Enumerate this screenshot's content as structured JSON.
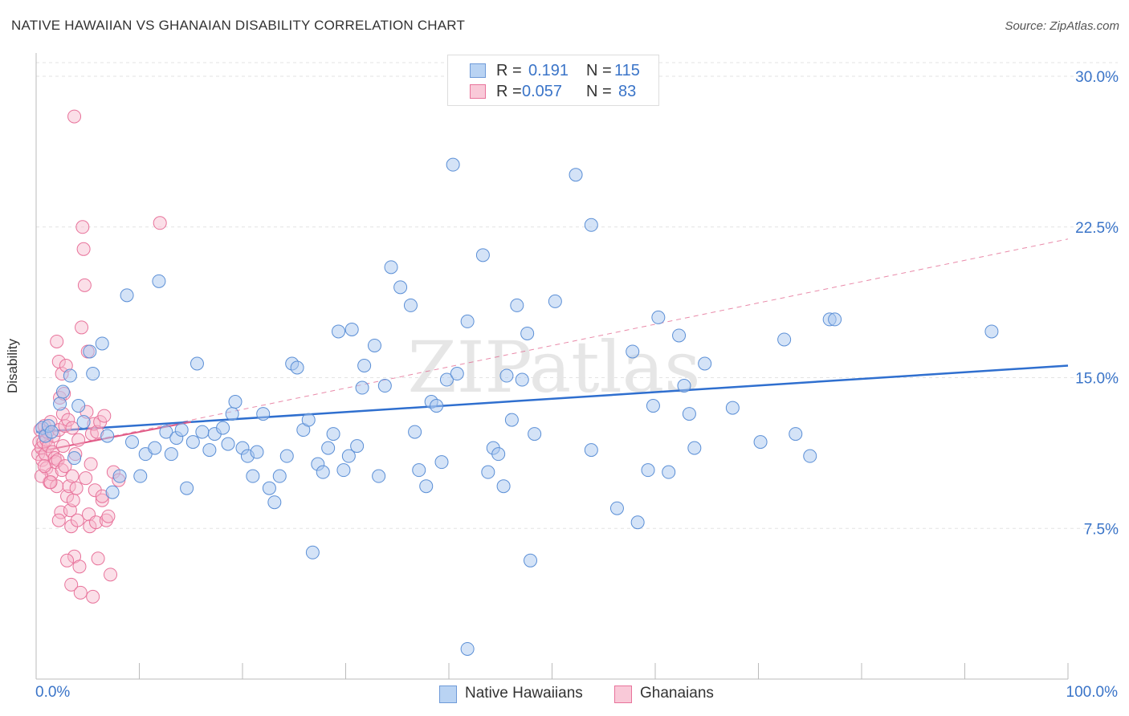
{
  "title": "NATIVE HAWAIIAN VS GHANAIAN DISABILITY CORRELATION CHART",
  "source": "Source: ZipAtlas.com",
  "watermark": "ZIPatlas",
  "colors": {
    "blue_fill": "#a9c8f0",
    "blue_stroke": "#5b8fd6",
    "blue_line": "#2f6fcf",
    "pink_fill": "#f7b8cc",
    "pink_stroke": "#e8739b",
    "pink_line": "#e05a86",
    "axis_text": "#3a74c8",
    "grid": "#e3e3e3"
  },
  "legend": {
    "rows": [
      {
        "r_label": "R =",
        "r_value": "0.191",
        "n_label": "N =",
        "n_value": "115"
      },
      {
        "r_label": "R =",
        "r_value": "0.057",
        "n_label": "N =",
        "n_value": "83"
      }
    ]
  },
  "bottom_legend": {
    "series_1": "Native Hawaiians",
    "series_2": "Ghanaians"
  },
  "chart_data": {
    "type": "scatter",
    "title": "NATIVE HAWAIIAN VS GHANAIAN DISABILITY CORRELATION CHART",
    "xlabel": "",
    "ylabel": "Disability",
    "xlim": [
      0,
      100
    ],
    "ylim": [
      0,
      31
    ],
    "x_tick_labels": [
      "0.0%",
      "100.0%"
    ],
    "y_ticks": [
      7.5,
      15.0,
      22.5,
      30.0
    ],
    "y_tick_labels": [
      "7.5%",
      "15.0%",
      "22.5%",
      "30.0%"
    ],
    "grid": true,
    "series": [
      {
        "name": "Native Hawaiians",
        "r": 0.191,
        "n": 115,
        "trend": {
          "x": [
            0,
            100
          ],
          "y": [
            12.3,
            15.6
          ],
          "style": "solid"
        },
        "points": [
          [
            0.6,
            12.5
          ],
          [
            0.9,
            12.1
          ],
          [
            1.2,
            12.6
          ],
          [
            1.5,
            12.3
          ],
          [
            2.3,
            13.7
          ],
          [
            2.6,
            14.3
          ],
          [
            3.3,
            15.1
          ],
          [
            3.7,
            11.0
          ],
          [
            4.1,
            13.6
          ],
          [
            4.6,
            12.8
          ],
          [
            5.2,
            16.3
          ],
          [
            5.5,
            15.2
          ],
          [
            6.4,
            16.7
          ],
          [
            6.9,
            12.1
          ],
          [
            7.4,
            9.3
          ],
          [
            8.1,
            10.1
          ],
          [
            8.8,
            19.1
          ],
          [
            9.3,
            11.8
          ],
          [
            10.1,
            10.1
          ],
          [
            10.6,
            11.2
          ],
          [
            11.5,
            11.5
          ],
          [
            11.9,
            19.8
          ],
          [
            12.6,
            12.3
          ],
          [
            13.1,
            11.2
          ],
          [
            13.6,
            12.0
          ],
          [
            14.1,
            12.4
          ],
          [
            14.6,
            9.5
          ],
          [
            15.2,
            11.8
          ],
          [
            15.6,
            15.7
          ],
          [
            16.1,
            12.3
          ],
          [
            16.8,
            11.4
          ],
          [
            17.3,
            12.2
          ],
          [
            18.1,
            12.5
          ],
          [
            18.6,
            11.7
          ],
          [
            19.0,
            13.2
          ],
          [
            19.3,
            13.8
          ],
          [
            20.0,
            11.5
          ],
          [
            20.5,
            11.1
          ],
          [
            21.0,
            10.1
          ],
          [
            21.4,
            11.3
          ],
          [
            22.0,
            13.2
          ],
          [
            22.6,
            9.5
          ],
          [
            23.1,
            8.8
          ],
          [
            23.6,
            10.1
          ],
          [
            24.3,
            11.1
          ],
          [
            24.8,
            15.7
          ],
          [
            25.3,
            15.5
          ],
          [
            25.9,
            12.4
          ],
          [
            26.4,
            12.9
          ],
          [
            26.8,
            6.3
          ],
          [
            27.3,
            10.7
          ],
          [
            27.8,
            10.3
          ],
          [
            28.3,
            11.5
          ],
          [
            28.8,
            12.2
          ],
          [
            29.3,
            17.3
          ],
          [
            29.8,
            10.4
          ],
          [
            30.3,
            11.1
          ],
          [
            30.6,
            17.4
          ],
          [
            31.1,
            11.6
          ],
          [
            31.6,
            14.5
          ],
          [
            31.8,
            15.6
          ],
          [
            32.8,
            16.6
          ],
          [
            33.2,
            10.1
          ],
          [
            33.8,
            14.6
          ],
          [
            34.4,
            20.5
          ],
          [
            35.3,
            19.5
          ],
          [
            36.3,
            18.6
          ],
          [
            36.7,
            12.3
          ],
          [
            37.1,
            10.4
          ],
          [
            37.8,
            9.6
          ],
          [
            38.3,
            13.8
          ],
          [
            38.8,
            13.6
          ],
          [
            39.3,
            10.8
          ],
          [
            39.8,
            14.9
          ],
          [
            40.4,
            25.6
          ],
          [
            40.8,
            15.2
          ],
          [
            41.8,
            17.8
          ],
          [
            43.3,
            21.1
          ],
          [
            43.8,
            10.3
          ],
          [
            44.3,
            11.5
          ],
          [
            44.8,
            11.2
          ],
          [
            45.3,
            9.6
          ],
          [
            45.6,
            15.1
          ],
          [
            46.1,
            12.9
          ],
          [
            46.6,
            18.6
          ],
          [
            47.1,
            14.9
          ],
          [
            47.6,
            17.2
          ],
          [
            47.9,
            5.9
          ],
          [
            48.3,
            12.2
          ],
          [
            50.3,
            18.8
          ],
          [
            52.3,
            25.1
          ],
          [
            53.8,
            22.6
          ],
          [
            53.8,
            11.4
          ],
          [
            56.3,
            8.5
          ],
          [
            57.8,
            16.3
          ],
          [
            58.3,
            7.8
          ],
          [
            59.3,
            10.4
          ],
          [
            59.8,
            13.6
          ],
          [
            60.3,
            18.0
          ],
          [
            61.3,
            10.3
          ],
          [
            62.3,
            17.1
          ],
          [
            62.8,
            14.6
          ],
          [
            63.3,
            13.2
          ],
          [
            63.8,
            11.5
          ],
          [
            64.8,
            15.7
          ],
          [
            67.5,
            13.5
          ],
          [
            70.2,
            11.8
          ],
          [
            72.5,
            16.9
          ],
          [
            73.6,
            12.2
          ],
          [
            75.0,
            11.1
          ],
          [
            76.9,
            17.9
          ],
          [
            77.4,
            17.9
          ],
          [
            92.6,
            17.3
          ],
          [
            41.8,
            1.5
          ]
        ]
      },
      {
        "name": "Ghanaians",
        "r": 0.057,
        "n": 83,
        "trend": {
          "x": [
            0,
            15
          ],
          "y": [
            11.3,
            12.8
          ],
          "style": "solid",
          "dashed_extension": {
            "x": [
              0,
              100
            ],
            "y": [
              11.3,
              21.9
            ]
          }
        },
        "points": [
          [
            0.2,
            11.2
          ],
          [
            0.3,
            11.8
          ],
          [
            0.4,
            12.4
          ],
          [
            0.5,
            11.5
          ],
          [
            0.6,
            10.9
          ],
          [
            0.7,
            11.8
          ],
          [
            0.8,
            12.6
          ],
          [
            0.9,
            11.2
          ],
          [
            1.0,
            10.5
          ],
          [
            1.0,
            11.9
          ],
          [
            1.1,
            12.3
          ],
          [
            1.2,
            11.6
          ],
          [
            1.3,
            9.8
          ],
          [
            1.4,
            12.8
          ],
          [
            1.5,
            10.2
          ],
          [
            1.6,
            11.3
          ],
          [
            1.7,
            12.1
          ],
          [
            1.8,
            11.0
          ],
          [
            1.9,
            10.8
          ],
          [
            2.0,
            9.6
          ],
          [
            2.0,
            16.8
          ],
          [
            2.1,
            10.9
          ],
          [
            2.2,
            12.4
          ],
          [
            2.2,
            15.8
          ],
          [
            2.3,
            14.0
          ],
          [
            2.4,
            8.3
          ],
          [
            2.5,
            10.4
          ],
          [
            2.5,
            15.2
          ],
          [
            2.6,
            11.6
          ],
          [
            2.6,
            13.2
          ],
          [
            2.7,
            14.2
          ],
          [
            2.8,
            10.6
          ],
          [
            2.8,
            12.6
          ],
          [
            2.9,
            15.6
          ],
          [
            3.0,
            9.1
          ],
          [
            3.1,
            12.9
          ],
          [
            3.2,
            9.6
          ],
          [
            3.3,
            8.4
          ],
          [
            3.4,
            4.7
          ],
          [
            3.4,
            7.6
          ],
          [
            3.5,
            10.1
          ],
          [
            3.5,
            12.5
          ],
          [
            3.6,
            8.9
          ],
          [
            3.7,
            6.1
          ],
          [
            3.8,
            11.2
          ],
          [
            3.9,
            9.5
          ],
          [
            4.0,
            7.9
          ],
          [
            4.1,
            11.9
          ],
          [
            4.2,
            5.6
          ],
          [
            4.3,
            4.3
          ],
          [
            4.4,
            17.5
          ],
          [
            4.5,
            22.5
          ],
          [
            4.6,
            21.4
          ],
          [
            4.7,
            19.6
          ],
          [
            4.8,
            10.0
          ],
          [
            4.9,
            13.3
          ],
          [
            5.0,
            16.3
          ],
          [
            5.1,
            8.2
          ],
          [
            5.2,
            7.6
          ],
          [
            5.3,
            10.7
          ],
          [
            5.4,
            12.2
          ],
          [
            5.5,
            4.1
          ],
          [
            5.6,
            12.7
          ],
          [
            5.7,
            9.4
          ],
          [
            5.8,
            7.8
          ],
          [
            5.9,
            12.3
          ],
          [
            6.0,
            6.0
          ],
          [
            6.2,
            12.8
          ],
          [
            6.4,
            8.9
          ],
          [
            6.6,
            13.1
          ],
          [
            6.8,
            7.9
          ],
          [
            7.0,
            8.1
          ],
          [
            7.2,
            5.2
          ],
          [
            7.5,
            10.3
          ],
          [
            8.0,
            9.9
          ],
          [
            12.0,
            22.7
          ],
          [
            3.7,
            28.0
          ],
          [
            0.5,
            10.1
          ],
          [
            1.4,
            9.8
          ],
          [
            0.8,
            10.6
          ],
          [
            2.2,
            7.9
          ],
          [
            3.0,
            5.9
          ],
          [
            6.4,
            9.1
          ]
        ]
      }
    ]
  }
}
